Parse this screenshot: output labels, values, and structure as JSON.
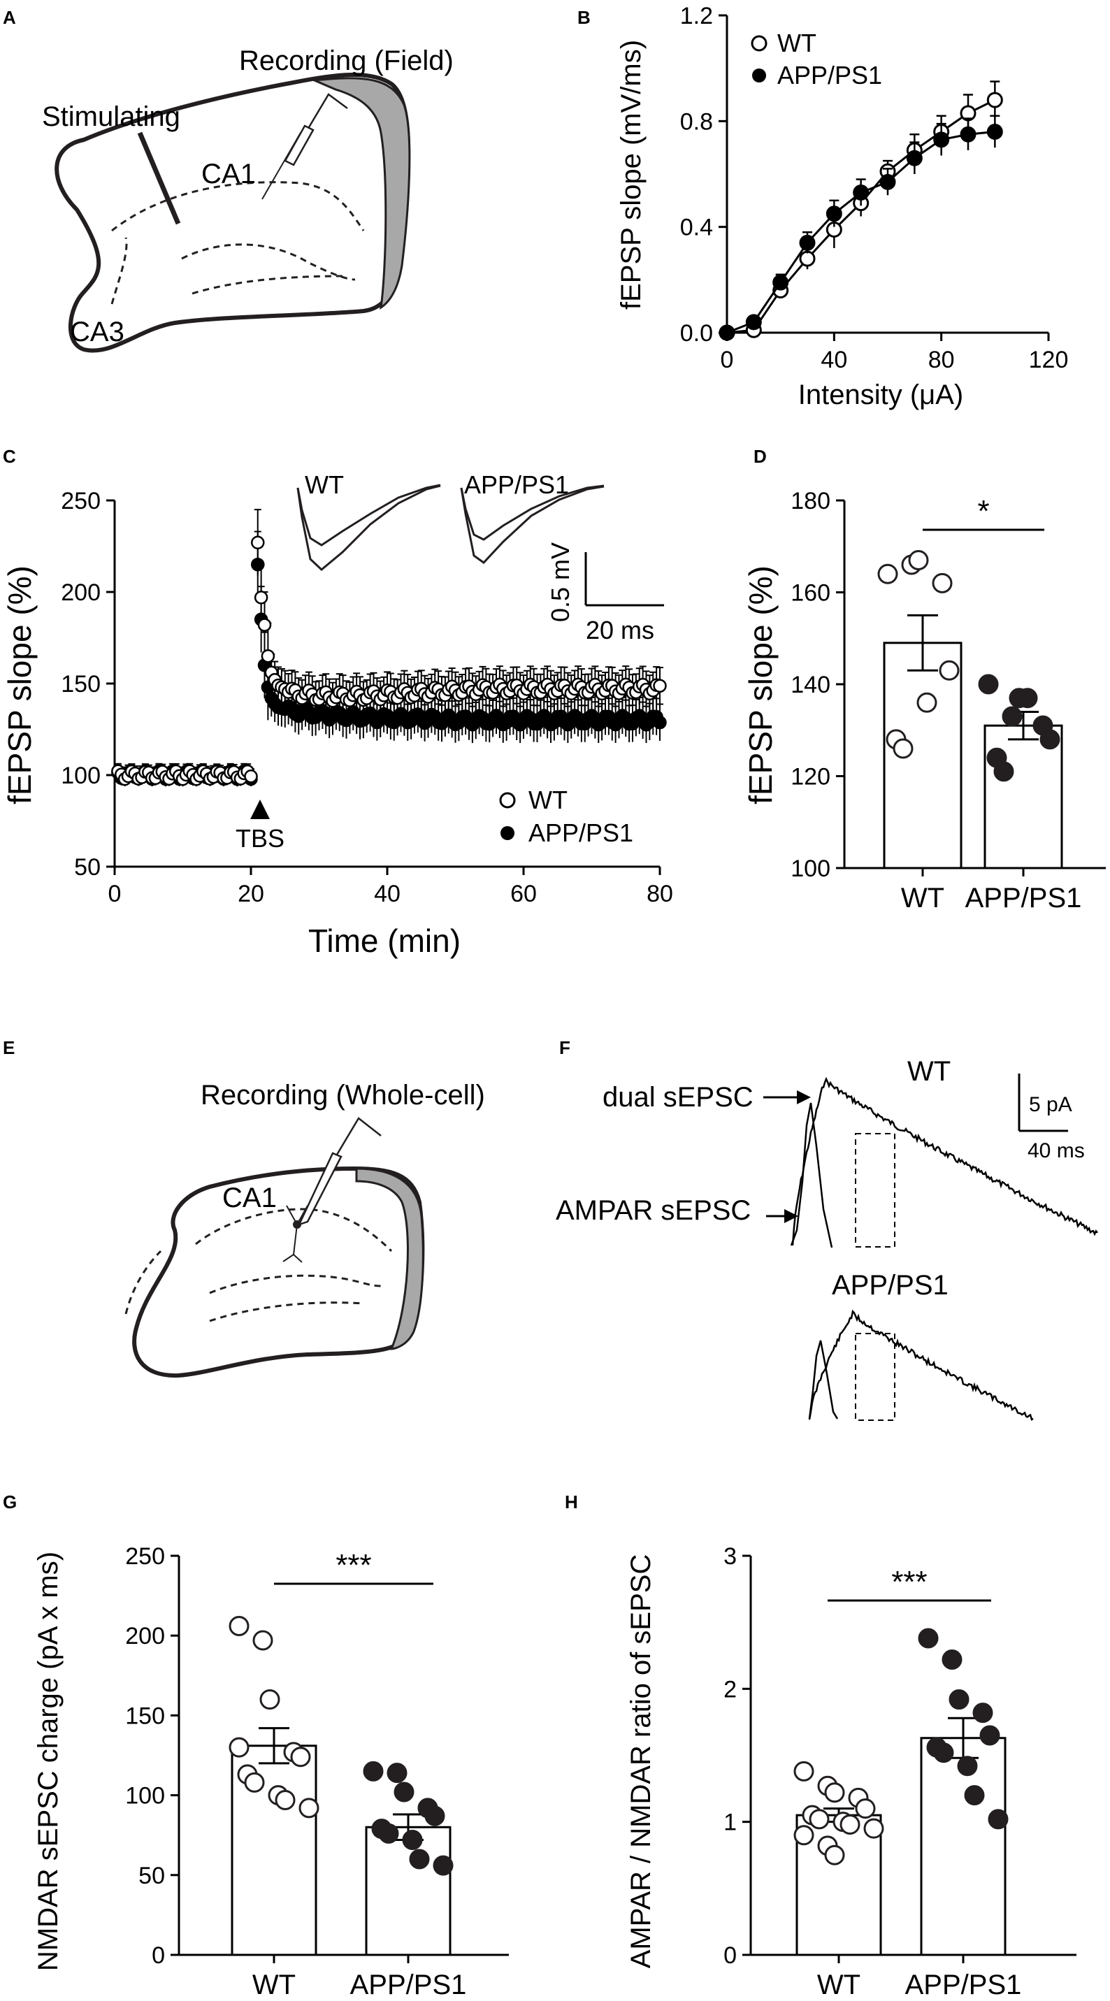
{
  "panels": {
    "A": {
      "letter": "A",
      "label_recording": "Recording (Field)",
      "label_stimulating": "Stimulating",
      "label_ca1": "CA1",
      "label_ca3": "CA3"
    },
    "E": {
      "letter": "E",
      "label_recording": "Recording (Whole-cell)",
      "label_ca1": "CA1"
    },
    "F": {
      "letter": "F",
      "label_wt": "WT",
      "label_app": "APP/PS1",
      "label_dual": "dual sEPSC",
      "label_ampar": "AMPAR sEPSC",
      "scale_y": "5 pA",
      "scale_x": "40 ms"
    }
  },
  "chart_data": [
    {
      "panel": "B",
      "type": "line",
      "ylabel": "fEPSP slope (mV/ms)",
      "xlabel": "Intensity (μA)",
      "xlim": [
        0,
        120
      ],
      "ylim": [
        0,
        1.2
      ],
      "xticks": [
        "0",
        "40",
        "80",
        "120"
      ],
      "yticks": [
        "0.0",
        "0.4",
        "0.8",
        "1.2"
      ],
      "legend_position": "top-left",
      "x": [
        0,
        10,
        20,
        30,
        40,
        50,
        60,
        70,
        80,
        90,
        100
      ],
      "series": [
        {
          "name": "WT",
          "marker": "open",
          "values": [
            0,
            0.01,
            0.16,
            0.28,
            0.39,
            0.49,
            0.61,
            0.69,
            0.76,
            0.83,
            0.88
          ],
          "err": [
            0.01,
            0.01,
            0.03,
            0.04,
            0.07,
            0.05,
            0.04,
            0.06,
            0.06,
            0.07,
            0.07
          ]
        },
        {
          "name": "APP/PS1",
          "marker": "filled",
          "values": [
            0,
            0.04,
            0.19,
            0.34,
            0.45,
            0.53,
            0.57,
            0.66,
            0.73,
            0.75,
            0.76
          ],
          "err": [
            0.01,
            0.02,
            0.03,
            0.04,
            0.05,
            0.05,
            0.05,
            0.06,
            0.06,
            0.06,
            0.06
          ]
        }
      ]
    },
    {
      "panel": "C",
      "type": "scatter",
      "ylabel": "fEPSP slope (%)",
      "xlabel": "Time (min)",
      "xlim": [
        0,
        80
      ],
      "ylim": [
        50,
        250
      ],
      "xticks": [
        "0",
        "20",
        "40",
        "60",
        "80"
      ],
      "yticks": [
        "50",
        "100",
        "150",
        "200",
        "250"
      ],
      "annotation": "TBS",
      "annotation_x": 21,
      "legend_position": "bottom-right",
      "insets": {
        "label_wt": "WT",
        "label_app": "APP/PS1",
        "scale_y": "0.5 mV",
        "scale_x": "20 ms"
      },
      "baseline": {
        "x_start": 0,
        "x_end": 20,
        "value": 100,
        "err": 4
      },
      "series": [
        {
          "name": "WT",
          "marker": "open",
          "post": [
            [
              21,
              227
            ],
            [
              21.5,
              197
            ],
            [
              22,
              182
            ],
            [
              22.5,
              165
            ],
            [
              23,
              156
            ],
            [
              23.5,
              152
            ],
            [
              24,
              149
            ],
            [
              25,
              147
            ],
            [
              26,
              145
            ],
            [
              28,
              144
            ],
            [
              30,
              143
            ],
            [
              35,
              143
            ],
            [
              40,
              144
            ],
            [
              45,
              145
            ],
            [
              50,
              146
            ],
            [
              55,
              147
            ],
            [
              60,
              147
            ],
            [
              65,
              147
            ],
            [
              70,
              147
            ],
            [
              75,
              147
            ],
            [
              80,
              147
            ]
          ],
          "err": 10
        },
        {
          "name": "APP/PS1",
          "marker": "filled",
          "post": [
            [
              21,
              215
            ],
            [
              21.5,
              185
            ],
            [
              22,
              160
            ],
            [
              22.5,
              148
            ],
            [
              23,
              142
            ],
            [
              23.5,
              139
            ],
            [
              24,
              137
            ],
            [
              25,
              136
            ],
            [
              26,
              135
            ],
            [
              28,
              134
            ],
            [
              30,
              133
            ],
            [
              35,
              132
            ],
            [
              40,
              131
            ],
            [
              45,
              131
            ],
            [
              50,
              130
            ],
            [
              55,
              130
            ],
            [
              60,
              130
            ],
            [
              65,
              130
            ],
            [
              70,
              130
            ],
            [
              75,
              130
            ],
            [
              80,
              130
            ]
          ],
          "err": 10
        }
      ]
    },
    {
      "panel": "D",
      "type": "bar",
      "ylabel": "fEPSP slope (%)",
      "ylim": [
        100,
        180
      ],
      "yticks": [
        "100",
        "120",
        "140",
        "160",
        "180"
      ],
      "categories": [
        "WT",
        "APP/PS1"
      ],
      "values": [
        149,
        131
      ],
      "sem": [
        6,
        3
      ],
      "points": [
        [
          164,
          166,
          167,
          162,
          143,
          128,
          126,
          136
        ],
        [
          140,
          133,
          137,
          131,
          128,
          124,
          121,
          137
        ]
      ],
      "significance": "*"
    },
    {
      "panel": "G",
      "type": "bar",
      "ylabel": "NMDAR sEPSC charge (pA x ms)",
      "ylim": [
        0,
        250
      ],
      "yticks": [
        "0",
        "50",
        "100",
        "150",
        "200",
        "250"
      ],
      "categories": [
        "WT",
        "APP/PS1"
      ],
      "values": [
        131,
        80
      ],
      "sem": [
        11,
        8
      ],
      "points": [
        [
          206,
          197,
          160,
          127,
          124,
          113,
          108,
          100,
          97,
          92,
          130
        ],
        [
          115,
          114,
          102,
          92,
          87,
          79,
          76,
          72,
          60,
          56
        ]
      ],
      "significance": "***"
    },
    {
      "panel": "H",
      "type": "bar",
      "ylabel": "AMPAR / NMDAR ratio of sEPSC",
      "ylim": [
        0,
        3
      ],
      "yticks": [
        "0",
        "1",
        "2",
        "3"
      ],
      "categories": [
        "WT",
        "APP/PS1"
      ],
      "values": [
        1.05,
        1.63
      ],
      "sem": [
        0.05,
        0.15
      ],
      "points": [
        [
          1.38,
          1.27,
          1.22,
          1.18,
          1.1,
          1.05,
          1.02,
          1.0,
          0.98,
          0.95,
          0.9,
          0.82,
          0.75
        ],
        [
          2.38,
          2.22,
          1.92,
          1.82,
          1.65,
          1.56,
          1.52,
          1.42,
          1.2,
          1.02
        ]
      ],
      "significance": "***"
    }
  ]
}
